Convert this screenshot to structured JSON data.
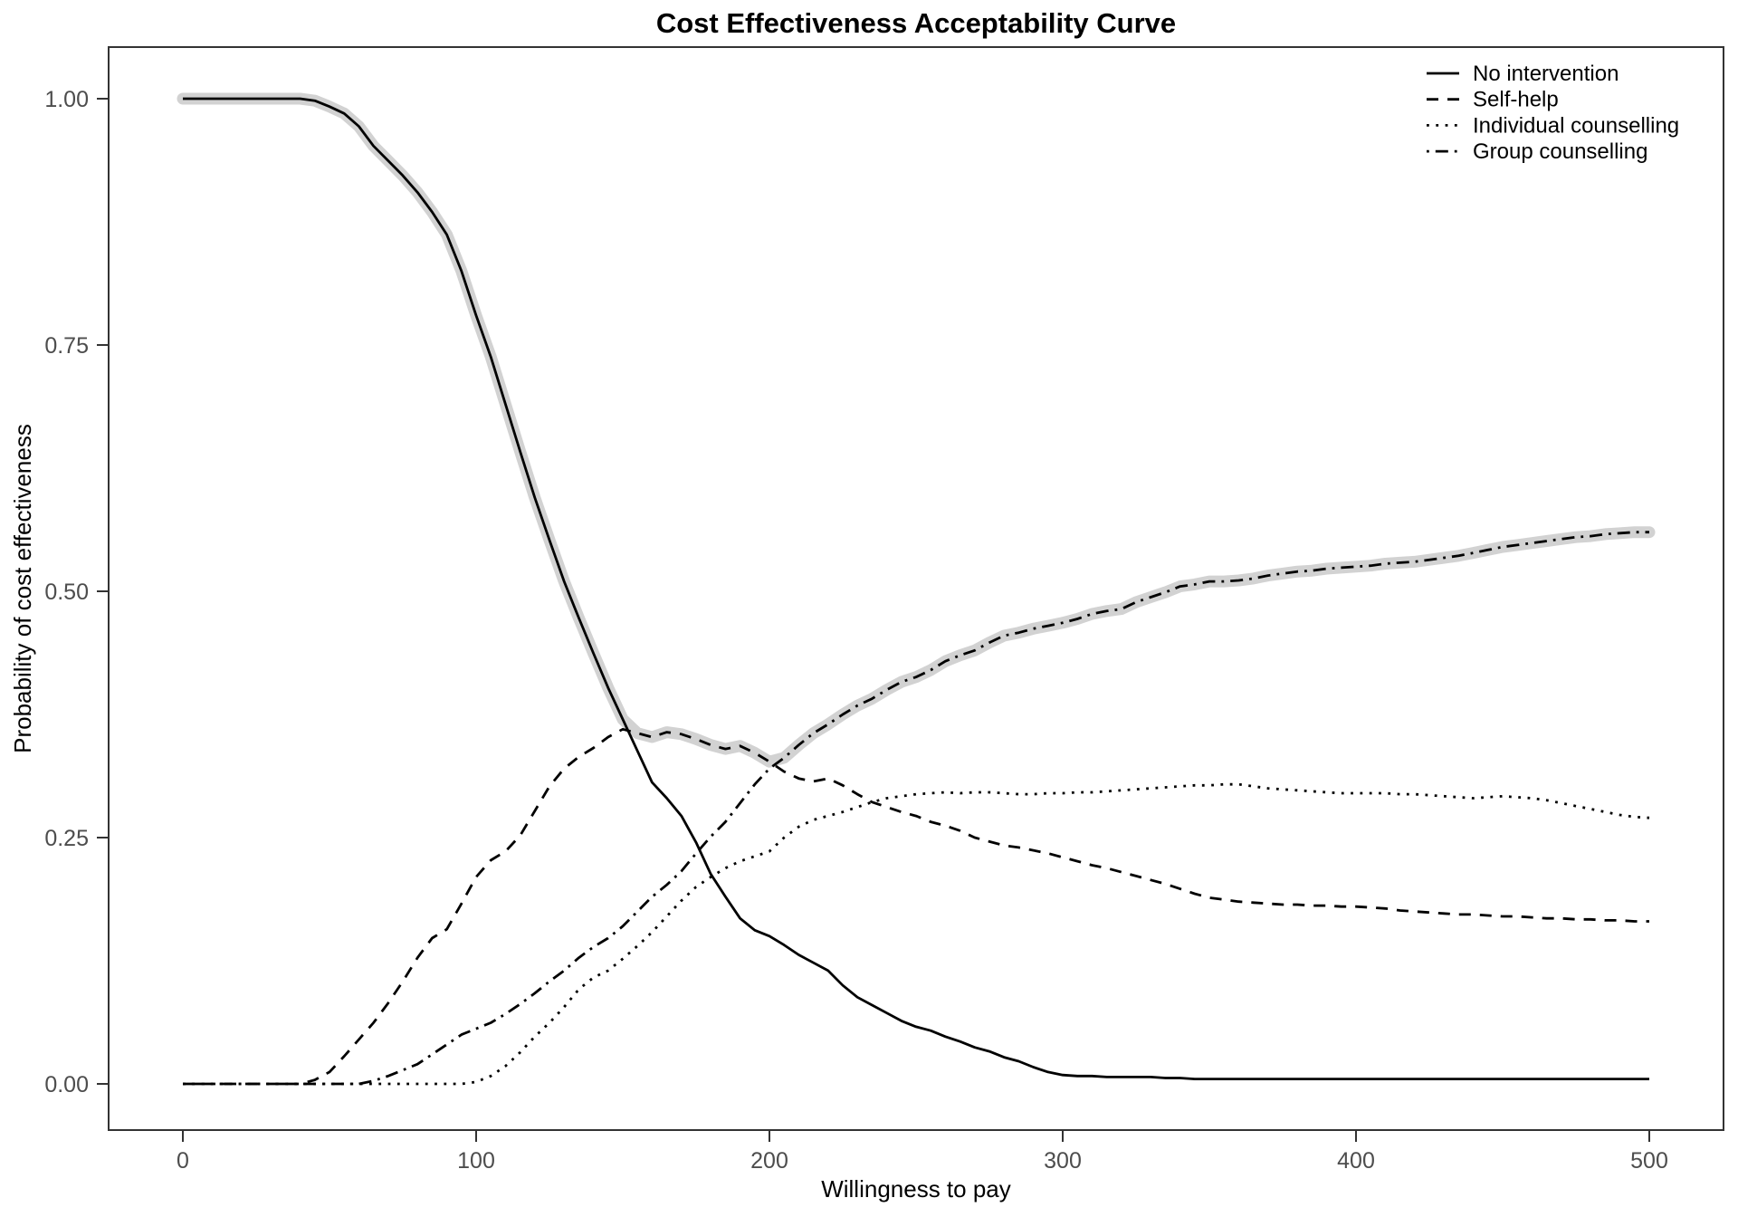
{
  "page": {
    "background": "#ffffff"
  },
  "chart_data": {
    "type": "line",
    "title": "Cost Effectiveness Acceptability Curve",
    "xlabel": "Willingness to pay",
    "ylabel": "Probability of cost effectiveness",
    "xlim": [
      0,
      500
    ],
    "ylim": [
      0,
      1
    ],
    "x_ticks": [
      0,
      100,
      200,
      300,
      400,
      500
    ],
    "x_tick_labels": [
      "0",
      "100",
      "200",
      "300",
      "400",
      "500"
    ],
    "y_ticks": [
      0,
      0.25,
      0.5,
      0.75,
      1
    ],
    "y_tick_labels": [
      "0.00",
      "0.25",
      "0.50",
      "0.75",
      "1.00"
    ],
    "grid": "off",
    "legend_position": "top-right-inside",
    "line_color": "#000000",
    "frontier_halo_color": "#d2d2d2",
    "panel_border_color": "#333333",
    "tick_label_color": "#4d4d4d",
    "x": [
      0,
      5,
      10,
      15,
      20,
      25,
      30,
      35,
      40,
      45,
      50,
      55,
      60,
      65,
      70,
      75,
      80,
      85,
      90,
      95,
      100,
      105,
      110,
      115,
      120,
      125,
      130,
      135,
      140,
      145,
      150,
      155,
      160,
      165,
      170,
      175,
      180,
      185,
      190,
      195,
      200,
      205,
      210,
      215,
      220,
      225,
      230,
      235,
      240,
      245,
      250,
      255,
      260,
      265,
      270,
      275,
      280,
      285,
      290,
      295,
      300,
      305,
      310,
      315,
      320,
      325,
      330,
      335,
      340,
      345,
      350,
      355,
      360,
      365,
      370,
      375,
      380,
      385,
      390,
      395,
      400,
      405,
      410,
      415,
      420,
      425,
      430,
      435,
      440,
      445,
      450,
      455,
      460,
      465,
      470,
      475,
      480,
      485,
      490,
      495,
      500
    ],
    "series": [
      {
        "name": "No intervention",
        "linetype": "solid",
        "values": [
          1,
          1,
          1,
          1,
          1,
          1,
          1,
          1,
          1,
          0.998,
          0.992,
          0.985,
          0.972,
          0.952,
          0.937,
          0.922,
          0.905,
          0.885,
          0.862,
          0.825,
          0.78,
          0.738,
          0.69,
          0.642,
          0.595,
          0.552,
          0.51,
          0.473,
          0.437,
          0.402,
          0.37,
          0.338,
          0.306,
          0.29,
          0.272,
          0.245,
          0.213,
          0.19,
          0.168,
          0.156,
          0.15,
          0.141,
          0.131,
          0.123,
          0.115,
          0.1,
          0.088,
          0.08,
          0.072,
          0.064,
          0.058,
          0.054,
          0.048,
          0.043,
          0.037,
          0.033,
          0.027,
          0.023,
          0.017,
          0.012,
          0.009,
          0.008,
          0.008,
          0.007,
          0.007,
          0.007,
          0.007,
          0.006,
          0.006,
          0.005,
          0.005,
          0.005,
          0.005,
          0.005,
          0.005,
          0.005,
          0.005,
          0.005,
          0.005,
          0.005,
          0.005,
          0.005,
          0.005,
          0.005,
          0.005,
          0.005,
          0.005,
          0.005,
          0.005,
          0.005,
          0.005,
          0.005,
          0.005,
          0.005,
          0.005,
          0.005,
          0.005,
          0.005,
          0.005,
          0.005,
          0.005
        ]
      },
      {
        "name": "Self-help",
        "linetype": "dashed",
        "values": [
          0,
          0,
          0,
          0,
          0,
          0,
          0,
          0,
          0,
          0.004,
          0.012,
          0.028,
          0.045,
          0.062,
          0.082,
          0.104,
          0.128,
          0.148,
          0.157,
          0.183,
          0.21,
          0.227,
          0.236,
          0.252,
          0.277,
          0.302,
          0.32,
          0.332,
          0.341,
          0.352,
          0.36,
          0.356,
          0.352,
          0.357,
          0.355,
          0.35,
          0.344,
          0.34,
          0.343,
          0.336,
          0.327,
          0.317,
          0.31,
          0.307,
          0.31,
          0.303,
          0.294,
          0.286,
          0.281,
          0.276,
          0.272,
          0.266,
          0.262,
          0.257,
          0.25,
          0.246,
          0.242,
          0.24,
          0.237,
          0.234,
          0.23,
          0.226,
          0.222,
          0.219,
          0.215,
          0.211,
          0.207,
          0.203,
          0.198,
          0.193,
          0.189,
          0.187,
          0.185,
          0.184,
          0.183,
          0.182,
          0.182,
          0.181,
          0.181,
          0.18,
          0.18,
          0.179,
          0.178,
          0.176,
          0.175,
          0.174,
          0.173,
          0.172,
          0.172,
          0.171,
          0.17,
          0.17,
          0.169,
          0.168,
          0.168,
          0.167,
          0.167,
          0.166,
          0.166,
          0.165,
          0.165
        ]
      },
      {
        "name": "Individual counselling",
        "linetype": "dotted",
        "values": [
          0,
          0,
          0,
          0,
          0,
          0,
          0,
          0,
          0,
          0,
          0,
          0,
          0,
          0,
          0,
          0,
          0,
          0,
          0,
          0,
          0.002,
          0.008,
          0.018,
          0.032,
          0.048,
          0.062,
          0.078,
          0.096,
          0.108,
          0.115,
          0.127,
          0.14,
          0.154,
          0.17,
          0.186,
          0.2,
          0.21,
          0.219,
          0.226,
          0.231,
          0.236,
          0.25,
          0.261,
          0.268,
          0.272,
          0.276,
          0.281,
          0.286,
          0.29,
          0.292,
          0.294,
          0.295,
          0.296,
          0.295,
          0.296,
          0.296,
          0.295,
          0.294,
          0.294,
          0.295,
          0.295,
          0.296,
          0.296,
          0.297,
          0.298,
          0.299,
          0.3,
          0.301,
          0.302,
          0.303,
          0.303,
          0.304,
          0.304,
          0.302,
          0.3,
          0.299,
          0.298,
          0.297,
          0.296,
          0.295,
          0.295,
          0.295,
          0.295,
          0.294,
          0.294,
          0.293,
          0.292,
          0.291,
          0.29,
          0.291,
          0.292,
          0.291,
          0.29,
          0.288,
          0.285,
          0.282,
          0.279,
          0.276,
          0.273,
          0.271,
          0.27
        ]
      },
      {
        "name": "Group counselling",
        "linetype": "dotdash",
        "values": [
          0,
          0,
          0,
          0,
          0,
          0,
          0,
          0,
          0,
          0,
          0,
          0,
          0,
          0.003,
          0.008,
          0.014,
          0.02,
          0.03,
          0.04,
          0.05,
          0.056,
          0.062,
          0.071,
          0.081,
          0.092,
          0.104,
          0.115,
          0.128,
          0.139,
          0.148,
          0.16,
          0.175,
          0.19,
          0.202,
          0.216,
          0.234,
          0.251,
          0.266,
          0.285,
          0.304,
          0.32,
          0.331,
          0.344,
          0.356,
          0.365,
          0.375,
          0.384,
          0.391,
          0.4,
          0.408,
          0.413,
          0.42,
          0.429,
          0.435,
          0.44,
          0.448,
          0.455,
          0.458,
          0.462,
          0.465,
          0.468,
          0.472,
          0.477,
          0.48,
          0.482,
          0.489,
          0.494,
          0.499,
          0.505,
          0.507,
          0.51,
          0.51,
          0.511,
          0.513,
          0.516,
          0.518,
          0.52,
          0.521,
          0.523,
          0.524,
          0.525,
          0.526,
          0.528,
          0.529,
          0.53,
          0.532,
          0.534,
          0.536,
          0.539,
          0.542,
          0.545,
          0.547,
          0.549,
          0.551,
          0.553,
          0.555,
          0.556,
          0.558,
          0.559,
          0.56,
          0.56
        ]
      }
    ]
  }
}
